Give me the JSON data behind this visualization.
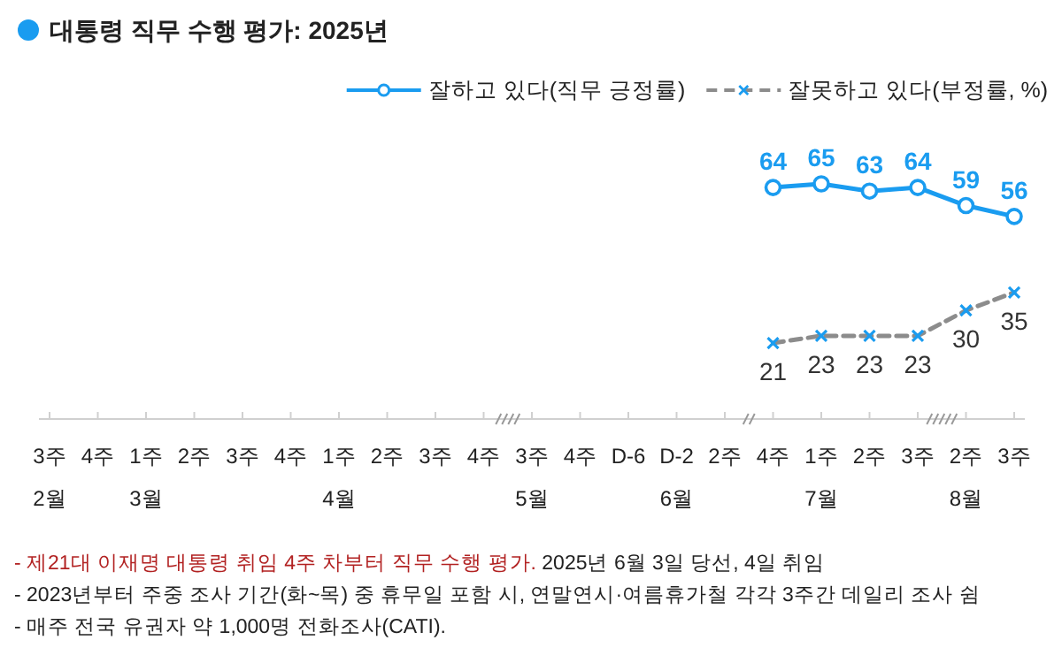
{
  "chart_data": {
    "type": "line",
    "title": "대통령 직무 수행 평가: 2025년",
    "categories": [
      "3주\n2월",
      "4주",
      "1주\n3월",
      "2주",
      "3주",
      "4주",
      "1주\n4월",
      "2주",
      "3주",
      "4주",
      "3주\n5월",
      "4주",
      "D-6",
      "D-2\n6월",
      "2주",
      "4주",
      "1주\n7월",
      "2주",
      "3주",
      "2주\n8월",
      "3주"
    ],
    "series": [
      {
        "name": "잘하고 있다(직무 긍정률)",
        "color": "#1a9cf0",
        "marker": "circle",
        "line_style": "solid",
        "values": [
          null,
          null,
          null,
          null,
          null,
          null,
          null,
          null,
          null,
          null,
          null,
          null,
          null,
          null,
          null,
          64,
          65,
          63,
          64,
          59,
          56
        ]
      },
      {
        "name": "잘못하고 있다(부정률, %)",
        "color": "#8c8c8c",
        "marker": "cross",
        "line_style": "dashed",
        "values": [
          null,
          null,
          null,
          null,
          null,
          null,
          null,
          null,
          null,
          null,
          null,
          null,
          null,
          null,
          null,
          21,
          23,
          23,
          23,
          30,
          35
        ]
      }
    ],
    "data_labels": true,
    "legend": "top right",
    "annotations": [
      "- 제21대 이재명 대통령 취임 4주 차부터 직무 수행 평가. 2025년 6월 3일 당선, 4일 취임",
      "- 2023년부터 주중 조사 기간(화~목) 중 휴무일 포함 시, 연말연시·여름휴가철 각각 3주간 데일리 조사 쉼",
      "- 매주 전국 유권자 약 1,000명 전화조사(CATI)."
    ]
  }
}
